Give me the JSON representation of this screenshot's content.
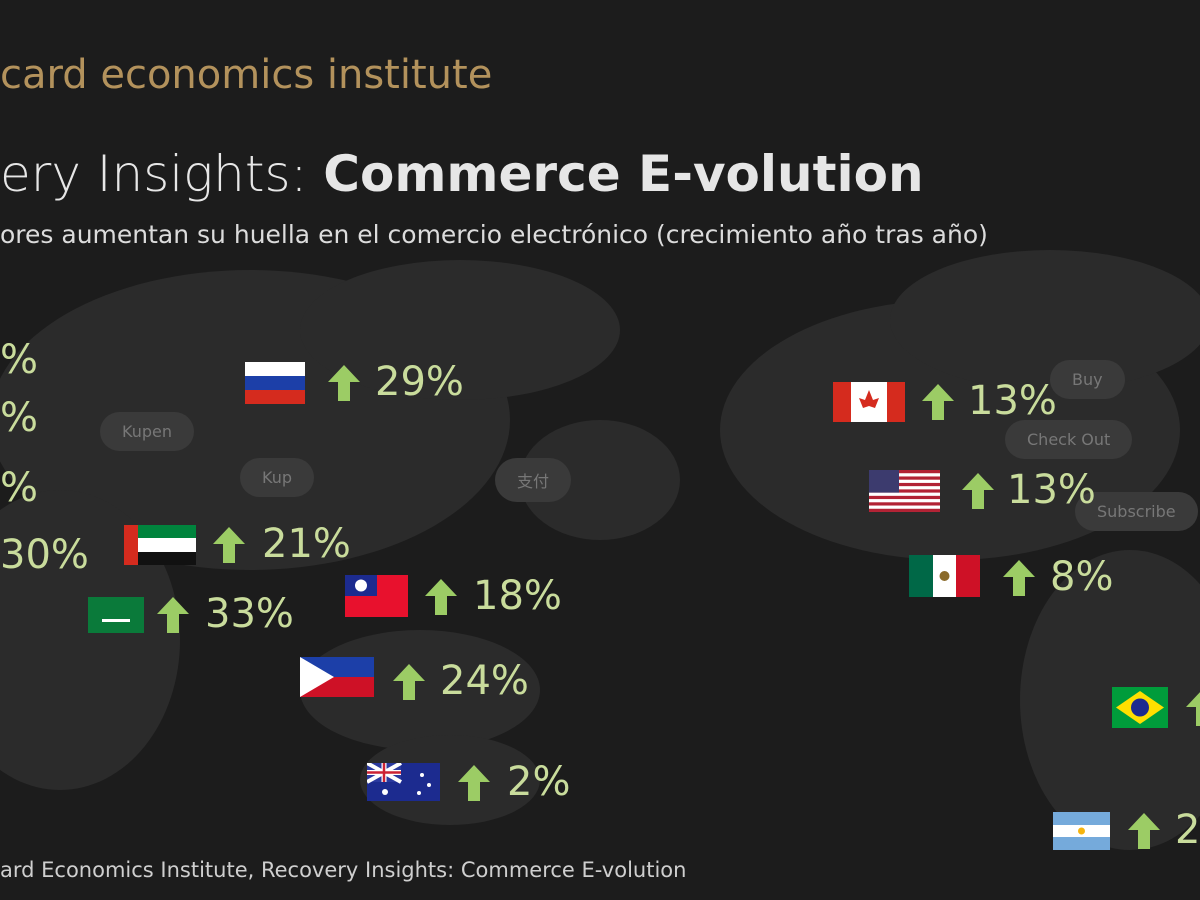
{
  "header": {
    "brand": "card economics institute",
    "title_prefix": "ery Insights: ",
    "title": "Commerce E-volution",
    "subtitle": "ores aumentan su huella en el comercio electrónico (crecimiento año tras año)"
  },
  "edge_labels": [
    "%",
    "%",
    "%",
    "30%"
  ],
  "items": [
    {
      "growth": "29%"
    },
    {
      "growth": "21%"
    },
    {
      "growth": "33%"
    },
    {
      "growth": "18%"
    },
    {
      "growth": "24%"
    },
    {
      "growth": "2%"
    },
    {
      "growth": "13%"
    },
    {
      "growth": "13%"
    },
    {
      "growth": "8%"
    },
    {
      "growth": "2"
    }
  ],
  "bubbles": [
    "Kupen",
    "Kup",
    "支付",
    "Buy",
    "Check Out",
    "Subscribe"
  ],
  "footer": "ard Economics Institute, Recovery Insights: Commerce E-volution"
}
